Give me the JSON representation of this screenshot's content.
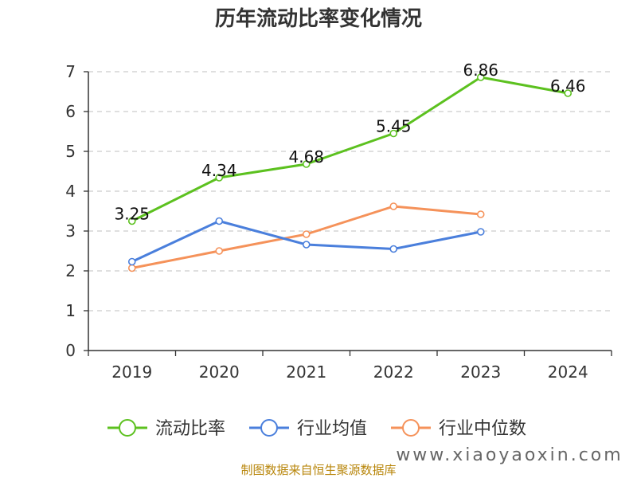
{
  "chart_data": {
    "type": "line",
    "title": "历年流动比率变化情况",
    "categories": [
      "2019",
      "2020",
      "2021",
      "2022",
      "2023",
      "2024"
    ],
    "ylim": [
      0,
      7
    ],
    "yticks": [
      "0",
      "1",
      "2",
      "3",
      "4",
      "5",
      "6",
      "7"
    ],
    "grid": true,
    "legend_position": "bottom",
    "series": [
      {
        "name": "流动比率",
        "color": "#5cc11f",
        "values": [
          3.25,
          4.34,
          4.68,
          5.45,
          6.86,
          6.46
        ],
        "labels": [
          "3.25",
          "4.34",
          "4.68",
          "5.45",
          "6.86",
          "6.46"
        ]
      },
      {
        "name": "行业均值",
        "color": "#4a7fdc",
        "values": [
          2.23,
          3.25,
          2.66,
          2.55,
          2.98,
          null
        ]
      },
      {
        "name": "行业中位数",
        "color": "#f5925a",
        "values": [
          2.07,
          2.5,
          2.92,
          3.62,
          3.42,
          null
        ]
      }
    ]
  },
  "footer": {
    "source": "制图数据来自恒生聚源数据库",
    "watermark": "www.xiaoyaoxin.com"
  }
}
